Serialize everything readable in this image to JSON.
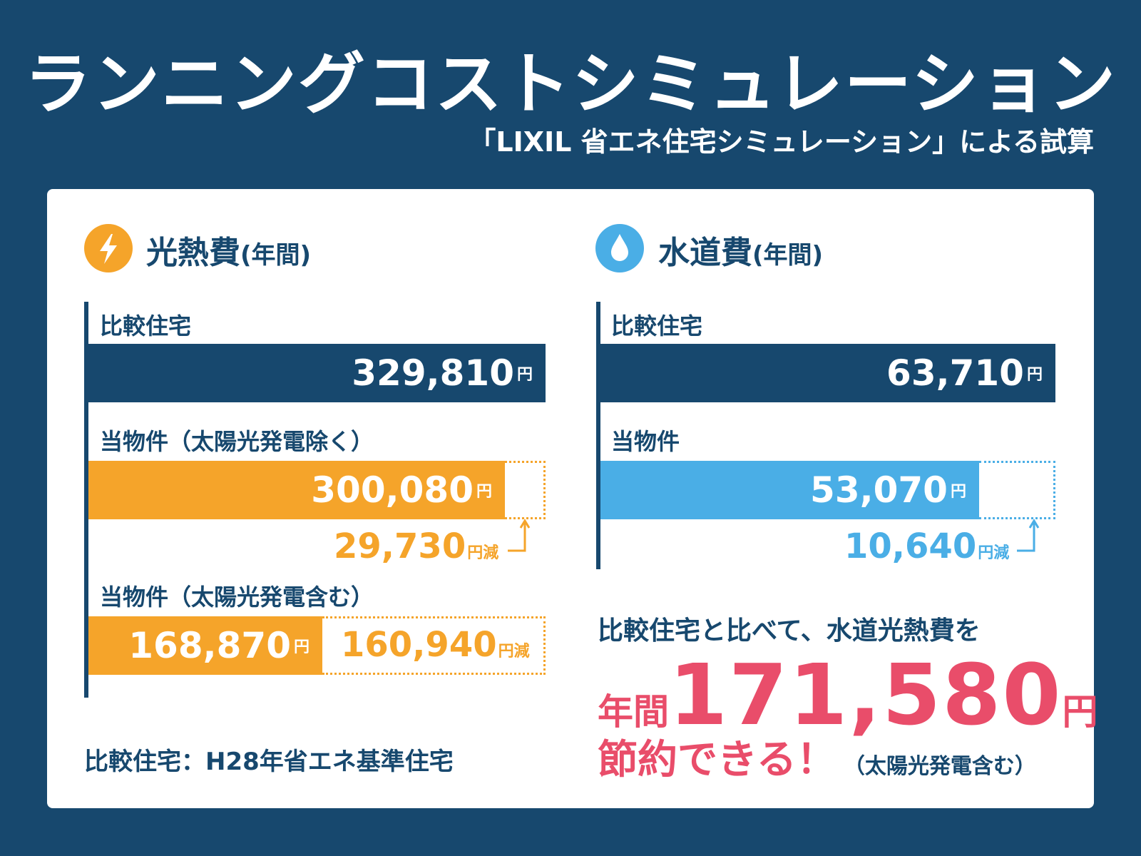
{
  "title": "ランニングコストシミュレーション",
  "subtitle": "「LIXIL 省エネ住宅シミュレーション」による試算",
  "colors": {
    "navy": "#17486e",
    "orange": "#f5a42a",
    "blue": "#4aaee6",
    "pink": "#e94d6a"
  },
  "electricity": {
    "heading": "光熱費",
    "heading_sub": "(年間)",
    "icon": "lightning-icon",
    "rows": {
      "comparison": {
        "label": "比較住宅",
        "value": "329,810",
        "unit": "円"
      },
      "without_solar": {
        "label": "当物件（太陽光発電除く）",
        "value": "300,080",
        "unit": "円"
      },
      "with_solar": {
        "label": "当物件（太陽光発電含む）",
        "value": "168,870",
        "unit": "円"
      }
    },
    "saving_without_solar": {
      "value": "29,730",
      "unit": "円減"
    },
    "saving_with_solar": {
      "value": "160,940",
      "unit": "円減"
    }
  },
  "water": {
    "heading": "水道費",
    "heading_sub": "(年間)",
    "icon": "water-drop-icon",
    "rows": {
      "comparison": {
        "label": "比較住宅",
        "value": "63,710",
        "unit": "円"
      },
      "property": {
        "label": "当物件",
        "value": "53,070",
        "unit": "円"
      }
    },
    "saving": {
      "value": "10,640",
      "unit": "円減"
    }
  },
  "footnote": "比較住宅：H28年省エネ基準住宅",
  "summary": {
    "lead": "比較住宅と比べて、水道光熱費を",
    "prefix": "年間",
    "amount": "171,580",
    "unit": "円",
    "tail": "節約できる！",
    "tail_note": "（太陽光発電含む）"
  },
  "chart_data": [
    {
      "type": "bar",
      "title": "光熱費(年間)",
      "categories": [
        "比較住宅",
        "当物件（太陽光発電除く）",
        "当物件（太陽光発電含む）"
      ],
      "values": [
        329810,
        300080,
        168870
      ],
      "savings": [
        0,
        29730,
        160940
      ]
    },
    {
      "type": "bar",
      "title": "水道費(年間)",
      "categories": [
        "比較住宅",
        "当物件"
      ],
      "values": [
        63710,
        53070
      ],
      "savings": [
        0,
        10640
      ]
    }
  ]
}
